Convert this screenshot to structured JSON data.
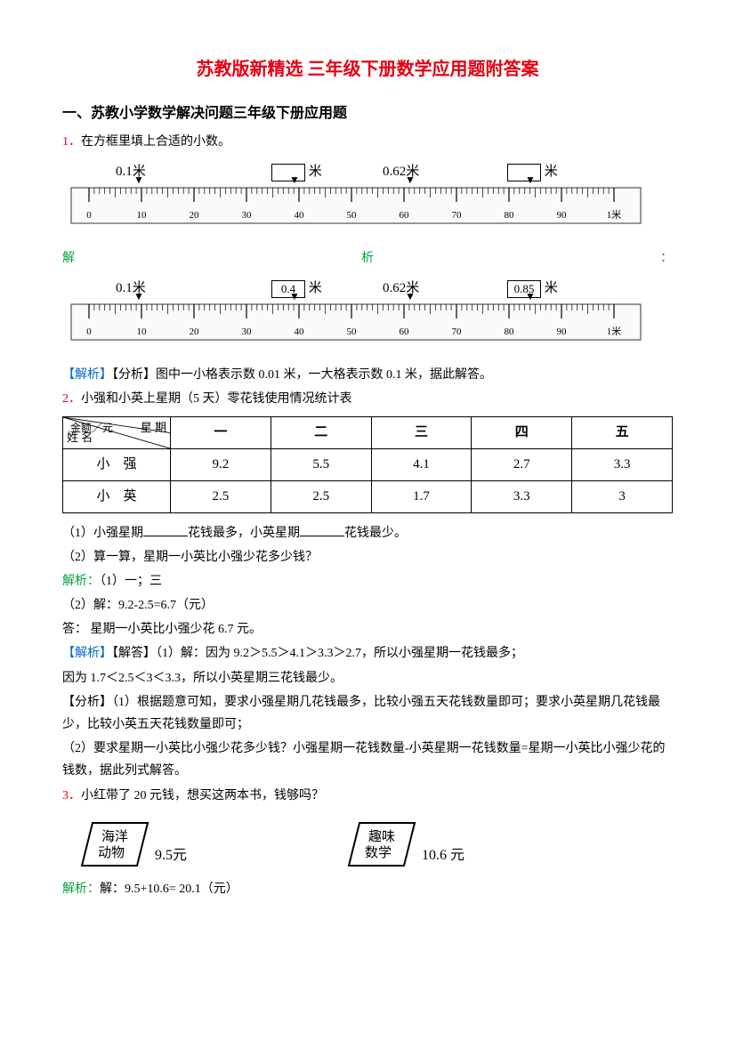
{
  "title": "苏教版新精选 三年级下册数学应用题附答案",
  "section_head": "一、苏教小学数学解决问题三年级下册应用题",
  "q1": {
    "num": "1．",
    "text": "在方框里填上合适的小数。",
    "labels": {
      "a": "0.1米",
      "b_unit": "米",
      "c": "0.62米",
      "d_unit": "米",
      "b_ans": "0.4",
      "d_ans": "0.85"
    },
    "ruler": {
      "ticks": [
        "0",
        "10",
        "20",
        "30",
        "40",
        "50",
        "60",
        "70",
        "80",
        "90",
        "1米"
      ]
    },
    "analysis_label_left": "解",
    "analysis_label_mid": "析",
    "analysis_label_right": "：",
    "explain_tag": "【解析】",
    "explain": "【分析】图中一小格表示数 0.01 米，一大格表示数 0.1 米，据此解答。"
  },
  "q2": {
    "num": "2．",
    "text": "小强和小英上星期（5 天）零花钱使用情况统计表",
    "table": {
      "diag_top": "星 期",
      "diag_mid": "金额／元",
      "diag_bot": "姓 名",
      "cols": [
        "一",
        "二",
        "三",
        "四",
        "五"
      ],
      "rows": [
        {
          "name": "小　强",
          "vals": [
            "9.2",
            "5.5",
            "4.1",
            "2.7",
            "3.3"
          ]
        },
        {
          "name": "小　英",
          "vals": [
            "2.5",
            "2.5",
            "1.7",
            "3.3",
            "3"
          ]
        }
      ]
    },
    "sub1_a": "（1）小强星期",
    "sub1_b": "花钱最多，小英星期",
    "sub1_c": "花钱最少。",
    "sub2": "（2）算一算，星期一小英比小强少花多少钱？",
    "ans_label": "解析：",
    "ans1": "（1）一；三",
    "ans2a": "（2）解：9.2-2.5=6.7（元）",
    "ans2b": "答： 星期一小英比小强少花 6.7 元。",
    "exp_tag": "【解析】",
    "exp1": "【解答】（1）解：因为 9.2＞5.5＞4.1＞3.3＞2.7，所以小强星期一花钱最多；",
    "exp2": "因为 1.7＜2.5＜3＜3.3，所以小英星期三花钱最少。",
    "exp3": "【分析】（1）根据题意可知，要求小强星期几花钱最多，比较小强五天花钱数量即可；要求小英星期几花钱最少，比较小英五天花钱数量即可；",
    "exp4": "（2）要求星期一小英比小强少花多少钱？小强星期一花钱数量-小英星期一花钱数量=星期一小英比小强少花的钱数，据此列式解答。"
  },
  "q3": {
    "num": "3．",
    "text": "小红带了 20 元钱，想买这两本书，钱够吗？",
    "book1": {
      "l1": "海洋",
      "l2": "动物",
      "price": "9.5元"
    },
    "book2": {
      "l1": "趣味",
      "l2": "数学",
      "price": "10.6 元"
    },
    "ans_label": "解析：",
    "ans": "解：9.5+10.6= 20.1（元）"
  }
}
